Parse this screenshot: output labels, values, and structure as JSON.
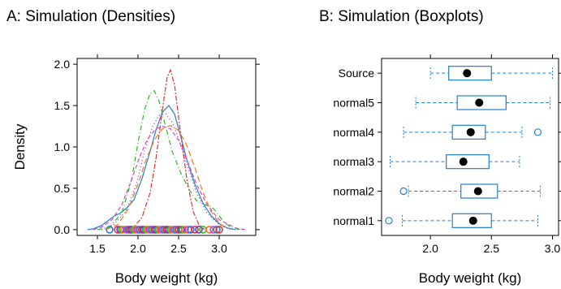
{
  "chart_data": [
    {
      "type": "line",
      "title": "A: Simulation (Densities)",
      "xlabel": "Body weight (kg)",
      "ylabel": "Density",
      "xlim": [
        1.25,
        3.45
      ],
      "ylim": [
        -0.07,
        2.07
      ],
      "xticks": [
        1.5,
        2.0,
        2.5,
        3.0
      ],
      "yticks": [
        0.0,
        0.5,
        1.0,
        1.5,
        2.0
      ],
      "xtick_labels": [
        "1.5",
        "2.0",
        "2.5",
        "3.0"
      ],
      "ytick_labels": [
        "0.0",
        "0.5",
        "1.0",
        "1.5",
        "2.0"
      ],
      "grid": false,
      "series": [
        {
          "color": "#1f7fd6",
          "dash": "",
          "points": [
            [
              1.38,
              0.0
            ],
            [
              1.45,
              0.01
            ],
            [
              1.55,
              0.05
            ],
            [
              1.62,
              0.1
            ],
            [
              1.7,
              0.16
            ],
            [
              1.78,
              0.2
            ],
            [
              1.86,
              0.26
            ],
            [
              1.95,
              0.36
            ],
            [
              2.05,
              0.62
            ],
            [
              2.15,
              0.95
            ],
            [
              2.22,
              1.2
            ],
            [
              2.3,
              1.42
            ],
            [
              2.38,
              1.5
            ],
            [
              2.45,
              1.4
            ],
            [
              2.52,
              1.15
            ],
            [
              2.6,
              0.85
            ],
            [
              2.7,
              0.55
            ],
            [
              2.8,
              0.32
            ],
            [
              2.9,
              0.17
            ],
            [
              3.0,
              0.07
            ],
            [
              3.1,
              0.02
            ],
            [
              3.2,
              0.0
            ]
          ]
        },
        {
          "color": "#e63030",
          "dash": "2,2,6,2",
          "points": [
            [
              1.85,
              0.0
            ],
            [
              1.95,
              0.03
            ],
            [
              2.05,
              0.15
            ],
            [
              2.15,
              0.45
            ],
            [
              2.22,
              0.85
            ],
            [
              2.3,
              1.45
            ],
            [
              2.36,
              1.85
            ],
            [
              2.4,
              1.93
            ],
            [
              2.45,
              1.75
            ],
            [
              2.52,
              1.2
            ],
            [
              2.6,
              0.62
            ],
            [
              2.68,
              0.22
            ],
            [
              2.75,
              0.06
            ],
            [
              2.82,
              0.0
            ]
          ]
        },
        {
          "color": "#7030c0",
          "dash": "1,3",
          "points": [
            [
              1.55,
              0.0
            ],
            [
              1.7,
              0.06
            ],
            [
              1.85,
              0.22
            ],
            [
              1.98,
              0.55
            ],
            [
              2.08,
              0.95
            ],
            [
              2.18,
              1.25
            ],
            [
              2.26,
              1.38
            ],
            [
              2.34,
              1.4
            ],
            [
              2.42,
              1.3
            ],
            [
              2.5,
              1.1
            ],
            [
              2.6,
              0.8
            ],
            [
              2.72,
              0.45
            ],
            [
              2.85,
              0.2
            ],
            [
              3.0,
              0.06
            ],
            [
              3.15,
              0.0
            ]
          ]
        },
        {
          "color": "#20c020",
          "dash": "6,3,1,3",
          "points": [
            [
              1.5,
              0.0
            ],
            [
              1.65,
              0.03
            ],
            [
              1.8,
              0.2
            ],
            [
              1.92,
              0.6
            ],
            [
              2.0,
              1.05
            ],
            [
              2.08,
              1.45
            ],
            [
              2.15,
              1.65
            ],
            [
              2.2,
              1.68
            ],
            [
              2.26,
              1.55
            ],
            [
              2.34,
              1.25
            ],
            [
              2.42,
              0.95
            ],
            [
              2.52,
              0.7
            ],
            [
              2.62,
              0.5
            ],
            [
              2.72,
              0.35
            ],
            [
              2.82,
              0.3
            ],
            [
              2.9,
              0.28
            ],
            [
              2.96,
              0.22
            ],
            [
              3.05,
              0.1
            ],
            [
              3.15,
              0.02
            ],
            [
              3.28,
              0.0
            ]
          ]
        },
        {
          "color": "#f07820",
          "dash": "7,4",
          "points": [
            [
              1.6,
              0.0
            ],
            [
              1.75,
              0.06
            ],
            [
              1.88,
              0.25
            ],
            [
              2.0,
              0.55
            ],
            [
              2.1,
              0.85
            ],
            [
              2.2,
              1.08
            ],
            [
              2.3,
              1.22
            ],
            [
              2.4,
              1.26
            ],
            [
              2.5,
              1.2
            ],
            [
              2.6,
              1.02
            ],
            [
              2.7,
              0.75
            ],
            [
              2.8,
              0.45
            ],
            [
              2.9,
              0.22
            ],
            [
              3.0,
              0.08
            ],
            [
              3.1,
              0.0
            ]
          ]
        },
        {
          "color": "#e040c8",
          "dash": "5,3",
          "points": [
            [
              1.45,
              0.0
            ],
            [
              1.55,
              0.03
            ],
            [
              1.68,
              0.12
            ],
            [
              1.8,
              0.3
            ],
            [
              1.92,
              0.6
            ],
            [
              2.02,
              0.88
            ],
            [
              2.12,
              1.1
            ],
            [
              2.22,
              1.22
            ],
            [
              2.3,
              1.25
            ],
            [
              2.4,
              1.22
            ],
            [
              2.5,
              1.08
            ],
            [
              2.6,
              0.85
            ],
            [
              2.72,
              0.55
            ],
            [
              2.85,
              0.3
            ],
            [
              3.0,
              0.12
            ],
            [
              3.2,
              0.02
            ],
            [
              3.32,
              0.0
            ]
          ]
        }
      ],
      "rug": {
        "y": 0.0,
        "colors": [
          "#1f7fd6",
          "#e63030",
          "#7030c0",
          "#20c020",
          "#f07820",
          "#e040c8"
        ],
        "values": [
          1.65,
          1.75,
          1.78,
          1.8,
          1.82,
          1.86,
          1.88,
          1.9,
          1.92,
          1.95,
          1.97,
          2.0,
          2.02,
          2.05,
          2.07,
          2.1,
          2.12,
          2.15,
          2.17,
          2.2,
          2.22,
          2.25,
          2.27,
          2.3,
          2.32,
          2.35,
          2.37,
          2.4,
          2.42,
          2.45,
          2.47,
          2.5,
          2.53,
          2.55,
          2.58,
          2.62,
          2.65,
          2.7,
          2.75,
          2.8,
          2.88,
          2.93,
          2.97,
          3.0
        ]
      }
    },
    {
      "type": "boxplot",
      "title": "B: Simulation (Boxplots)",
      "xlabel": "Body weight (kg)",
      "xlim": [
        1.6,
        3.05
      ],
      "xticks": [
        2.0,
        2.5,
        3.0
      ],
      "xtick_labels": [
        "2.0",
        "2.5",
        "3.0"
      ],
      "color": "#1f7fd6",
      "boxes": [
        {
          "label": "Source",
          "whisker_low": 2.0,
          "q1": 2.15,
          "median": 2.3,
          "q3": 2.5,
          "whisker_high": 3.0,
          "outliers": []
        },
        {
          "label": "normal5",
          "whisker_low": 1.88,
          "q1": 2.22,
          "median": 2.4,
          "q3": 2.62,
          "whisker_high": 2.98,
          "outliers": []
        },
        {
          "label": "normal4",
          "whisker_low": 1.78,
          "q1": 2.18,
          "median": 2.33,
          "q3": 2.45,
          "whisker_high": 2.75,
          "outliers": [
            2.88
          ]
        },
        {
          "label": "normal3",
          "whisker_low": 1.67,
          "q1": 2.13,
          "median": 2.27,
          "q3": 2.48,
          "whisker_high": 2.73,
          "outliers": []
        },
        {
          "label": "normal2",
          "whisker_low": 1.82,
          "q1": 2.25,
          "median": 2.39,
          "q3": 2.55,
          "whisker_high": 2.9,
          "outliers": [
            1.78
          ]
        },
        {
          "label": "normal1",
          "whisker_low": 1.77,
          "q1": 2.18,
          "median": 2.35,
          "q3": 2.5,
          "whisker_high": 2.88,
          "outliers": [
            1.66
          ]
        }
      ]
    }
  ]
}
